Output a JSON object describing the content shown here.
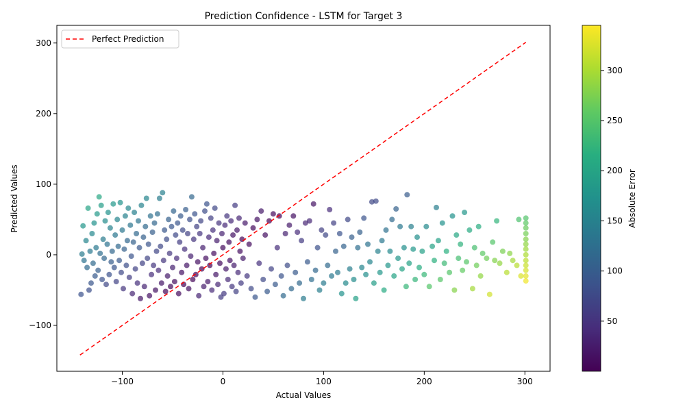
{
  "chart_data": {
    "type": "scatter",
    "title": "Prediction Confidence - LSTM for Target 3",
    "xlabel": "Actual Values",
    "ylabel": "Predicted Values",
    "xlim": [
      -165,
      325
    ],
    "ylim": [
      -165,
      325
    ],
    "x_ticks": [
      -100,
      0,
      100,
      200,
      300
    ],
    "y_ticks": [
      -100,
      0,
      100,
      200,
      300
    ],
    "legend": {
      "position": "upper-left",
      "entries": [
        "Perfect Prediction"
      ]
    },
    "reference_line": {
      "name": "Perfect Prediction",
      "from": [
        -142,
        -142
      ],
      "to": [
        301,
        301
      ],
      "color": "#ff0000",
      "style": "dashed"
    },
    "colorbar": {
      "label": "Absolute Error",
      "min": 0,
      "max": 345,
      "ticks": [
        50,
        100,
        150,
        200,
        250,
        300
      ],
      "colormap": "viridis"
    },
    "grid": false,
    "marker_color_meaning": "absolute error |actual - predicted| mapped to viridis",
    "point_alpha": 0.7,
    "points": [
      [
        -141,
        -56
      ],
      [
        -140,
        1
      ],
      [
        -139,
        41
      ],
      [
        -138,
        -8
      ],
      [
        -136,
        20
      ],
      [
        -135,
        -18
      ],
      [
        -134,
        66
      ],
      [
        -133,
        -50
      ],
      [
        -132,
        5
      ],
      [
        -131,
        -40
      ],
      [
        -130,
        30
      ],
      [
        -129,
        -12
      ],
      [
        -128,
        45
      ],
      [
        -127,
        -30
      ],
      [
        -126,
        10
      ],
      [
        -125,
        58
      ],
      [
        -124,
        -22
      ],
      [
        -123,
        82
      ],
      [
        -122,
        2
      ],
      [
        -121,
        70
      ],
      [
        -120,
        -35
      ],
      [
        -119,
        22
      ],
      [
        -118,
        -5
      ],
      [
        -117,
        48
      ],
      [
        -116,
        -42
      ],
      [
        -115,
        15
      ],
      [
        -114,
        60
      ],
      [
        -113,
        -28
      ],
      [
        -112,
        38
      ],
      [
        -111,
        -10
      ],
      [
        -110,
        5
      ],
      [
        -109,
        72
      ],
      [
        -108,
        -18
      ],
      [
        -107,
        28
      ],
      [
        -106,
        -38
      ],
      [
        -105,
        50
      ],
      [
        -104,
        12
      ],
      [
        -103,
        -8
      ],
      [
        -102,
        74
      ],
      [
        -101,
        -25
      ],
      [
        -100,
        35
      ],
      [
        -99,
        -48
      ],
      [
        -98,
        8
      ],
      [
        -97,
        55
      ],
      [
        -96,
        -15
      ],
      [
        -95,
        20
      ],
      [
        -94,
        66
      ],
      [
        -93,
        -32
      ],
      [
        -92,
        42
      ],
      [
        -91,
        -2
      ],
      [
        -90,
        -55
      ],
      [
        -89,
        18
      ],
      [
        -88,
        60
      ],
      [
        -87,
        -20
      ],
      [
        -86,
        30
      ],
      [
        -85,
        -40
      ],
      [
        -84,
        48
      ],
      [
        -83,
        10
      ],
      [
        -82,
        -62
      ],
      [
        -81,
        70
      ],
      [
        -80,
        -12
      ],
      [
        -79,
        25
      ],
      [
        -78,
        -45
      ],
      [
        -77,
        40
      ],
      [
        -76,
        80
      ],
      [
        -75,
        -5
      ],
      [
        -74,
        15
      ],
      [
        -73,
        -58
      ],
      [
        -72,
        55
      ],
      [
        -71,
        -28
      ],
      [
        -70,
        32
      ],
      [
        -69,
        -15
      ],
      [
        -68,
        45
      ],
      [
        -67,
        -50
      ],
      [
        -66,
        5
      ],
      [
        -65,
        58
      ],
      [
        -64,
        -22
      ],
      [
        -63,
        80
      ],
      [
        -62,
        12
      ],
      [
        -61,
        -40
      ],
      [
        -60,
        88
      ],
      [
        -59,
        -8
      ],
      [
        -58,
        35
      ],
      [
        -57,
        -52
      ],
      [
        -56,
        22
      ],
      [
        -55,
        -30
      ],
      [
        -54,
        50
      ],
      [
        -53,
        2
      ],
      [
        -52,
        -45
      ],
      [
        -51,
        40
      ],
      [
        -50,
        -18
      ],
      [
        -49,
        62
      ],
      [
        -48,
        -38
      ],
      [
        -47,
        28
      ],
      [
        -46,
        -5
      ],
      [
        -45,
        45
      ],
      [
        -44,
        -55
      ],
      [
        -43,
        18
      ],
      [
        -42,
        55
      ],
      [
        -41,
        -25
      ],
      [
        -40,
        35
      ],
      [
        -39,
        -42
      ],
      [
        -38,
        8
      ],
      [
        -37,
        64
      ],
      [
        -36,
        -15
      ],
      [
        -35,
        30
      ],
      [
        -34,
        -48
      ],
      [
        -33,
        50
      ],
      [
        -32,
        -2
      ],
      [
        -31,
        82
      ],
      [
        -30,
        -35
      ],
      [
        -29,
        22
      ],
      [
        -28,
        58
      ],
      [
        -27,
        -28
      ],
      [
        -26,
        40
      ],
      [
        -25,
        -10
      ],
      [
        -24,
        -58
      ],
      [
        -23,
        30
      ],
      [
        -22,
        48
      ],
      [
        -21,
        -20
      ],
      [
        -20,
        10
      ],
      [
        -19,
        -45
      ],
      [
        -18,
        62
      ],
      [
        -17,
        -5
      ],
      [
        -16,
        72
      ],
      [
        -15,
        -38
      ],
      [
        -14,
        25
      ],
      [
        -13,
        -15
      ],
      [
        -12,
        52
      ],
      [
        -11,
        -50
      ],
      [
        -10,
        35
      ],
      [
        -9,
        2
      ],
      [
        -8,
        66
      ],
      [
        -7,
        -28
      ],
      [
        -6,
        20
      ],
      [
        -5,
        -42
      ],
      [
        -4,
        45
      ],
      [
        -3,
        -12
      ],
      [
        -2,
        -60
      ],
      [
        -1,
        30
      ],
      [
        0,
        10
      ],
      [
        1,
        -55
      ],
      [
        2,
        42
      ],
      [
        3,
        -20
      ],
      [
        4,
        55
      ],
      [
        5,
        -35
      ],
      [
        6,
        18
      ],
      [
        7,
        -8
      ],
      [
        8,
        48
      ],
      [
        9,
        -45
      ],
      [
        10,
        28
      ],
      [
        11,
        -15
      ],
      [
        12,
        70
      ],
      [
        13,
        -52
      ],
      [
        14,
        35
      ],
      [
        15,
        -25
      ],
      [
        16,
        52
      ],
      [
        17,
        5
      ],
      [
        18,
        -40
      ],
      [
        19,
        22
      ],
      [
        20,
        -5
      ],
      [
        22,
        45
      ],
      [
        24,
        -30
      ],
      [
        26,
        15
      ],
      [
        28,
        -48
      ],
      [
        30,
        38
      ],
      [
        32,
        -60
      ],
      [
        34,
        50
      ],
      [
        36,
        -12
      ],
      [
        38,
        62
      ],
      [
        40,
        -35
      ],
      [
        42,
        28
      ],
      [
        44,
        -52
      ],
      [
        46,
        48
      ],
      [
        48,
        -20
      ],
      [
        50,
        58
      ],
      [
        52,
        -42
      ],
      [
        54,
        10
      ],
      [
        56,
        55
      ],
      [
        58,
        -30
      ],
      [
        60,
        -58
      ],
      [
        62,
        30
      ],
      [
        64,
        -15
      ],
      [
        66,
        42
      ],
      [
        68,
        -48
      ],
      [
        70,
        55
      ],
      [
        72,
        -25
      ],
      [
        74,
        32
      ],
      [
        76,
        -40
      ],
      [
        78,
        20
      ],
      [
        80,
        -62
      ],
      [
        82,
        45
      ],
      [
        84,
        -10
      ],
      [
        86,
        48
      ],
      [
        88,
        -35
      ],
      [
        90,
        72
      ],
      [
        92,
        -22
      ],
      [
        94,
        10
      ],
      [
        96,
        -50
      ],
      [
        98,
        35
      ],
      [
        100,
        -40
      ],
      [
        102,
        28
      ],
      [
        104,
        -15
      ],
      [
        106,
        64
      ],
      [
        108,
        -30
      ],
      [
        110,
        45
      ],
      [
        112,
        5
      ],
      [
        114,
        -25
      ],
      [
        116,
        30
      ],
      [
        118,
        -55
      ],
      [
        120,
        12
      ],
      [
        122,
        -40
      ],
      [
        124,
        50
      ],
      [
        126,
        -20
      ],
      [
        128,
        25
      ],
      [
        130,
        -35
      ],
      [
        132,
        -62
      ],
      [
        134,
        10
      ],
      [
        136,
        32
      ],
      [
        138,
        -18
      ],
      [
        140,
        52
      ],
      [
        142,
        -28
      ],
      [
        144,
        15
      ],
      [
        146,
        -10
      ],
      [
        148,
        75
      ],
      [
        150,
        -40
      ],
      [
        152,
        76
      ],
      [
        154,
        5
      ],
      [
        156,
        -25
      ],
      [
        158,
        20
      ],
      [
        160,
        -50
      ],
      [
        162,
        35
      ],
      [
        164,
        -15
      ],
      [
        166,
        5
      ],
      [
        168,
        50
      ],
      [
        170,
        -30
      ],
      [
        172,
        65
      ],
      [
        174,
        -5
      ],
      [
        176,
        40
      ],
      [
        178,
        -20
      ],
      [
        180,
        10
      ],
      [
        182,
        -45
      ],
      [
        183,
        85
      ],
      [
        185,
        -12
      ],
      [
        187,
        40
      ],
      [
        189,
        8
      ],
      [
        191,
        -35
      ],
      [
        193,
        25
      ],
      [
        195,
        -18
      ],
      [
        198,
        5
      ],
      [
        200,
        -28
      ],
      [
        202,
        40
      ],
      [
        205,
        -45
      ],
      [
        208,
        12
      ],
      [
        210,
        -8
      ],
      [
        212,
        67
      ],
      [
        214,
        20
      ],
      [
        216,
        -35
      ],
      [
        218,
        45
      ],
      [
        220,
        -12
      ],
      [
        222,
        5
      ],
      [
        225,
        -25
      ],
      [
        228,
        55
      ],
      [
        230,
        -50
      ],
      [
        232,
        28
      ],
      [
        234,
        -5
      ],
      [
        236,
        15
      ],
      [
        238,
        -22
      ],
      [
        240,
        60
      ],
      [
        242,
        -10
      ],
      [
        245,
        35
      ],
      [
        248,
        -48
      ],
      [
        250,
        10
      ],
      [
        252,
        -15
      ],
      [
        254,
        40
      ],
      [
        256,
        -30
      ],
      [
        258,
        2
      ],
      [
        262,
        -5
      ],
      [
        265,
        -56
      ],
      [
        268,
        18
      ],
      [
        270,
        -8
      ],
      [
        272,
        48
      ],
      [
        275,
        -12
      ],
      [
        278,
        5
      ],
      [
        282,
        -25
      ],
      [
        285,
        2
      ],
      [
        288,
        -8
      ],
      [
        292,
        -15
      ],
      [
        294,
        50
      ],
      [
        296,
        -30
      ],
      [
        301,
        52
      ],
      [
        301,
        45
      ],
      [
        301,
        38
      ],
      [
        301,
        30
      ],
      [
        301,
        22
      ],
      [
        301,
        15
      ],
      [
        301,
        8
      ],
      [
        301,
        0
      ],
      [
        301,
        -8
      ],
      [
        301,
        -15
      ],
      [
        301,
        -22
      ],
      [
        301,
        -30
      ],
      [
        301,
        -37
      ]
    ]
  }
}
